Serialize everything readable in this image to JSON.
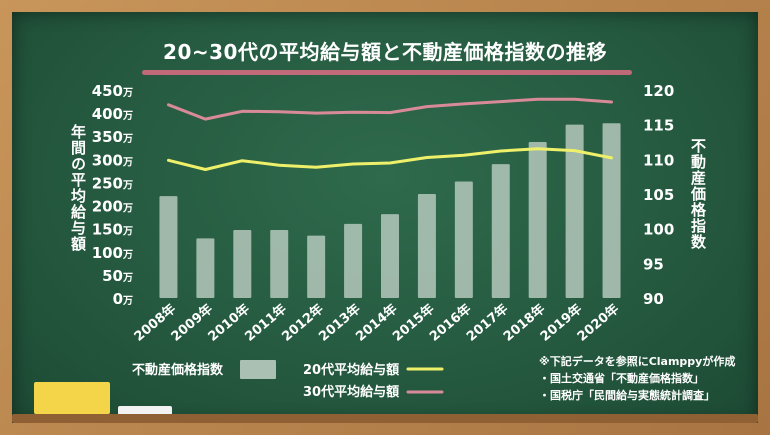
{
  "chart_data": {
    "type": "bar+line",
    "title": "20~30代の平均給与額と不動産価格指数の推移",
    "categories": [
      "2008年",
      "2009年",
      "2010年",
      "2011年",
      "2012年",
      "2013年",
      "2014年",
      "2015年",
      "2016年",
      "2017年",
      "2018年",
      "2019年",
      "2020年"
    ],
    "left_axis": {
      "label": "年間の平均給与額",
      "ticks": [
        "450万",
        "400万",
        "350万",
        "300万",
        "250万",
        "200万",
        "150万",
        "100万",
        "50万",
        "0万"
      ],
      "range": [
        0,
        450
      ]
    },
    "right_axis": {
      "label": "不動産価格指数",
      "ticks": [
        "120",
        "115",
        "110",
        "105",
        "100",
        "95",
        "90"
      ],
      "range": [
        90,
        120
      ]
    },
    "series": [
      {
        "name": "不動産価格指数",
        "kind": "bar",
        "axis": "right",
        "color": "#a9c0b3",
        "values": [
          104.7,
          98.6,
          99.8,
          99.8,
          99.0,
          100.7,
          102.1,
          105.0,
          106.8,
          109.3,
          112.5,
          115.0,
          115.2
        ]
      },
      {
        "name": "20代平均給与額",
        "kind": "line",
        "axis": "left",
        "color": "#eef06a",
        "values": [
          298,
          278,
          297,
          287,
          283,
          290,
          292,
          304,
          309,
          318,
          323,
          319,
          303
        ]
      },
      {
        "name": "30代平均給与額",
        "kind": "line",
        "axis": "left",
        "color": "#d98a99",
        "values": [
          418,
          387,
          404,
          403,
          400,
          402,
          401,
          414,
          420,
          425,
          430,
          430,
          424
        ]
      }
    ]
  },
  "notes": {
    "line1": "※下記データを参照にClamppyが作成",
    "line2": "・国土交通省「不動産価格指数」",
    "line3": "・国税庁「民間給与実態統計調査」"
  },
  "colors": {
    "board": "#255a40",
    "frame": "#b9884f",
    "underline": "#d16b7f"
  }
}
